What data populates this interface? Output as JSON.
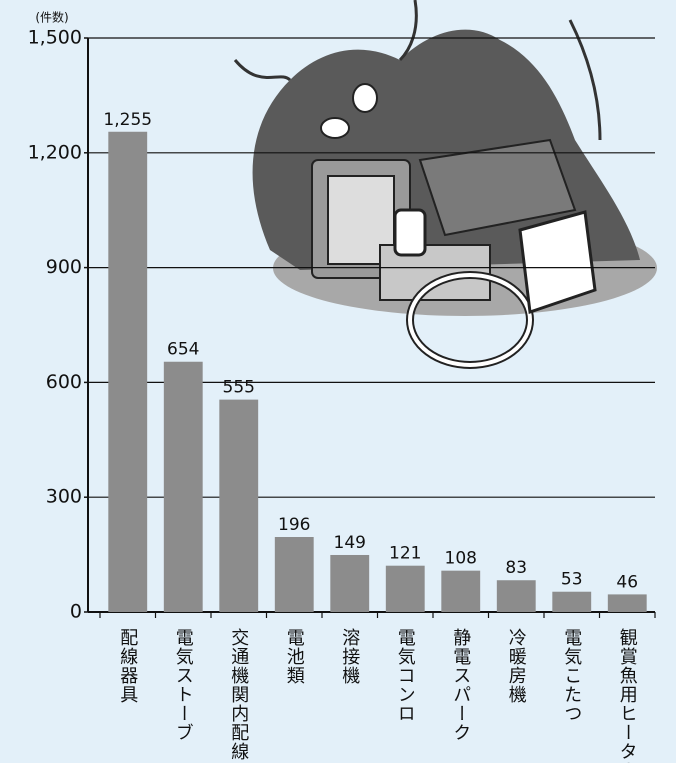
{
  "chart_data": {
    "type": "bar",
    "y_label": "(件数)",
    "categories": [
      "配線器具",
      "電気ストーブ",
      "交通機関内配線",
      "電池類",
      "溶接機",
      "電気コンロ",
      "静電スパーク",
      "冷暖房機",
      "電気こたつ",
      "観賞魚用ヒーター"
    ],
    "values": [
      1255,
      654,
      555,
      196,
      149,
      121,
      108,
      83,
      53,
      46
    ],
    "value_labels": [
      "1,255",
      "654",
      "555",
      "196",
      "149",
      "121",
      "108",
      "83",
      "53",
      "46"
    ],
    "color": "#8c8c8c",
    "ylim": [
      0,
      1500
    ],
    "yticks": [
      0,
      300,
      600,
      900,
      {
        "value": 1200,
        "label": "1,200"
      },
      {
        "value": 1500,
        "label": "1,500"
      }
    ],
    "grid": true
  }
}
